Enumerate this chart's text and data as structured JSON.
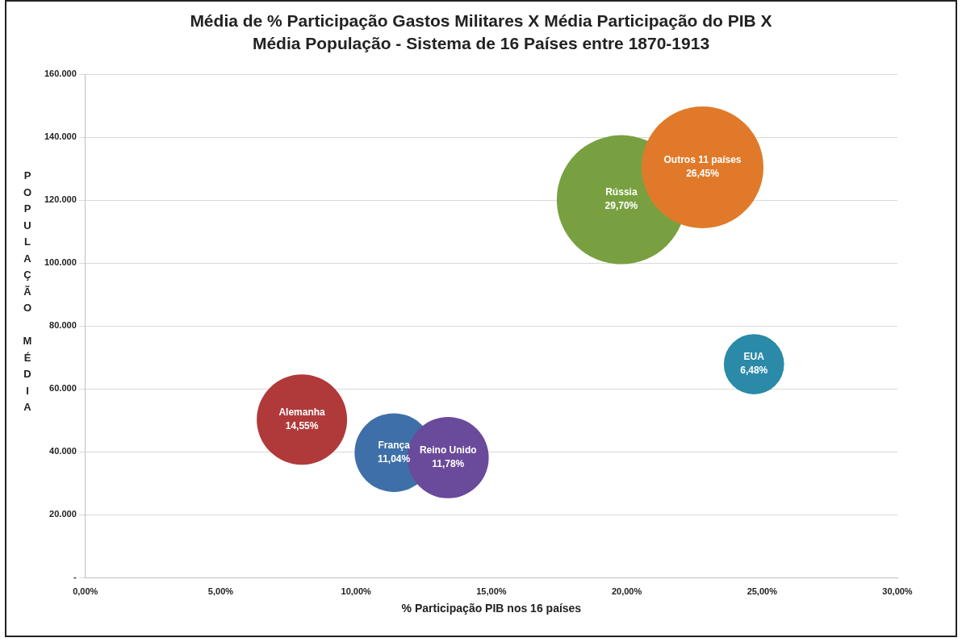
{
  "chart_data": {
    "type": "bubble",
    "title": "Média de % Participação Gastos Militares X Média Participação do PIB  X Média População - Sistema de 16 Países entre 1870-1913",
    "xlabel": "% Participação PIB nos 16 países",
    "ylabel": "POPULAÇÃO MÉDIA",
    "xlim": [
      0,
      30
    ],
    "xticks": [
      {
        "value": 0,
        "label": "0,00%"
      },
      {
        "value": 5,
        "label": "5,00%"
      },
      {
        "value": 10,
        "label": "10,00%"
      },
      {
        "value": 15,
        "label": "15,00%"
      },
      {
        "value": 20,
        "label": "20,00%"
      },
      {
        "value": 25,
        "label": "25,00%"
      },
      {
        "value": 30,
        "label": "30,00%"
      }
    ],
    "ylim": [
      0,
      160000
    ],
    "yticks": [
      {
        "value": 0,
        "label": "-"
      },
      {
        "value": 20000,
        "label": "20.000"
      },
      {
        "value": 40000,
        "label": "40.000"
      },
      {
        "value": 60000,
        "label": "60.000"
      },
      {
        "value": 80000,
        "label": "80.000"
      },
      {
        "value": 100000,
        "label": "100.000"
      },
      {
        "value": 120000,
        "label": "120.000"
      },
      {
        "value": 140000,
        "label": "140.000"
      },
      {
        "value": 160000,
        "label": "160.000"
      }
    ],
    "grid": "y",
    "legend": false,
    "series": [
      {
        "name": "Alemanha",
        "color": "#b03a3a",
        "x": [
          8.0
        ],
        "values": [
          50200
        ],
        "sizes": [
          14.55
        ],
        "value_labels": [
          "14,55%"
        ]
      },
      {
        "name": "França",
        "color": "#3f6fa8",
        "x": [
          11.4
        ],
        "values": [
          39700
        ],
        "sizes": [
          11.04
        ],
        "value_labels": [
          "11,04%"
        ]
      },
      {
        "name": "Reino Unido",
        "color": "#6a4a9a",
        "x": [
          13.4
        ],
        "values": [
          38100
        ],
        "sizes": [
          11.78
        ],
        "value_labels": [
          "11,78%"
        ]
      },
      {
        "name": "Rússia",
        "color": "#78a040",
        "x": [
          19.8
        ],
        "values": [
          120100
        ],
        "sizes": [
          29.7
        ],
        "value_labels": [
          "29,70%"
        ]
      },
      {
        "name": "Outros 11 países",
        "color": "#e07a2a",
        "x": [
          22.8
        ],
        "values": [
          130400
        ],
        "sizes": [
          26.45
        ],
        "value_labels": [
          "26,45%"
        ]
      },
      {
        "name": "EUA",
        "color": "#2a8aa8",
        "x": [
          24.7
        ],
        "values": [
          67800
        ],
        "sizes": [
          6.48
        ],
        "value_labels": [
          "6,48%"
        ]
      }
    ]
  }
}
